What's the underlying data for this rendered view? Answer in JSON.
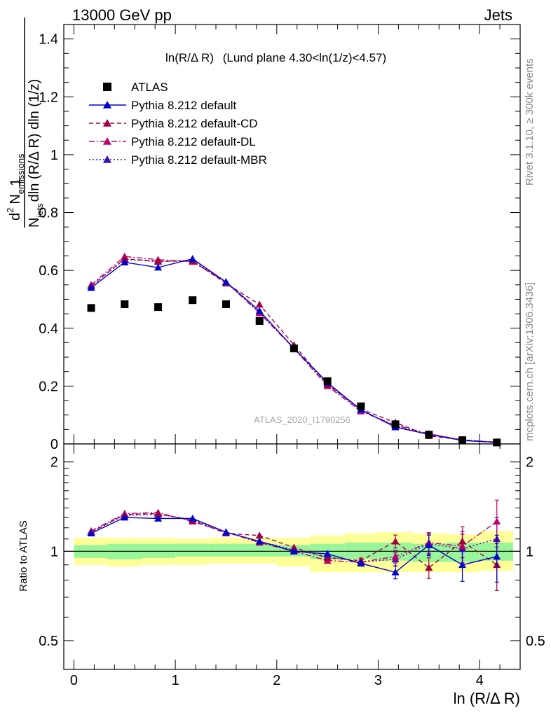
{
  "header": {
    "left": "13000 GeV pp",
    "right": "Jets"
  },
  "main_plot": {
    "title_prefix": "ln(R/Δ R)",
    "title_suffix": "(Lund plane 4.30<ln(1/z)<4.57)",
    "watermark": "ATLAS_2020_I1790256",
    "ylabel": {
      "one": "1",
      "njets": "N",
      "njets_sub": "jets",
      "dln_rest": "dln (R/Δ R) dln (1/z)",
      "d2": "d",
      "d2_sup": "2",
      "nemis": "N",
      "nemis_sub": "emissions"
    },
    "yticks": [
      "0",
      "0.2",
      "0.4",
      "0.6",
      "0.8",
      "1",
      "1.2",
      "1.4"
    ]
  },
  "ratio_plot": {
    "ylabel": "Ratio to ATLAS",
    "yticks": [
      "0.5",
      "1",
      "2"
    ]
  },
  "xaxis": {
    "label": "ln (R/Δ R)",
    "ticks": [
      "0",
      "1",
      "2",
      "3",
      "4"
    ]
  },
  "side_text": {
    "rivet": "Rivet 3.1.10, ≥ 300k events",
    "mcplots": "mcplots.cern.ch [arXiv:1306.3436]"
  },
  "legend": [
    {
      "label": "ATLAS",
      "color": "#000000",
      "marker": "square",
      "dash": "none"
    },
    {
      "label": "Pythia 8.212 default",
      "color": "#0000cc",
      "marker": "triangle",
      "dash": "solid"
    },
    {
      "label": "Pythia 8.212 default-CD",
      "color": "#a00040",
      "marker": "triangle",
      "dash": "dash"
    },
    {
      "label": "Pythia 8.212 default-DL",
      "color": "#c0006a",
      "marker": "triangle",
      "dash": "dashdot"
    },
    {
      "label": "Pythia 8.212 default-MBR",
      "color": "#3a10b0",
      "marker": "triangle",
      "dash": "dot"
    }
  ],
  "chart_data": {
    "type": "scatter",
    "x": [
      0.17,
      0.5,
      0.83,
      1.17,
      1.5,
      1.83,
      2.17,
      2.5,
      2.83,
      3.17,
      3.5,
      3.83,
      4.17
    ],
    "xlim": [
      -0.1,
      4.4
    ],
    "ylim": [
      0,
      1.45
    ],
    "ratio_ylim": [
      0.4,
      2.3
    ],
    "ratio_scale": "log",
    "series": [
      {
        "name": "ATLAS",
        "values": [
          0.47,
          0.483,
          0.473,
          0.497,
          0.483,
          0.425,
          0.33,
          0.217,
          0.13,
          0.068,
          0.032,
          0.013,
          0.005
        ]
      },
      {
        "name": "Pythia 8.212 default",
        "values": [
          0.54,
          0.628,
          0.61,
          0.64,
          0.56,
          0.46,
          0.33,
          0.212,
          0.118,
          0.058,
          0.033,
          0.012,
          0.005
        ]
      },
      {
        "name": "Pythia 8.212 default-CD",
        "values": [
          0.546,
          0.64,
          0.632,
          0.632,
          0.555,
          0.482,
          0.342,
          0.205,
          0.12,
          0.074,
          0.028,
          0.014,
          0.0045
        ]
      },
      {
        "name": "Pythia 8.212 default-DL",
        "values": [
          0.55,
          0.648,
          0.637,
          0.63,
          0.56,
          0.452,
          0.33,
          0.2,
          0.113,
          0.065,
          0.035,
          0.014,
          0.0063
        ]
      },
      {
        "name": "Pythia 8.212 default-MBR",
        "values": [
          0.545,
          0.638,
          0.63,
          0.635,
          0.558,
          0.455,
          0.332,
          0.207,
          0.116,
          0.062,
          0.034,
          0.013,
          0.0055
        ]
      }
    ],
    "ratio": [
      {
        "name": "Pythia 8.212 default",
        "values": [
          1.15,
          1.3,
          1.29,
          1.29,
          1.16,
          1.08,
          1.0,
          0.98,
          0.91,
          0.85,
          1.05,
          0.9,
          0.96
        ]
      },
      {
        "name": "Pythia 8.212 default-CD",
        "values": [
          1.16,
          1.33,
          1.34,
          1.27,
          1.15,
          1.13,
          1.03,
          0.95,
          0.93,
          1.08,
          0.88,
          1.08,
          0.9
        ]
      },
      {
        "name": "Pythia 8.212 default-DL",
        "values": [
          1.17,
          1.34,
          1.35,
          1.26,
          1.16,
          1.07,
          1.0,
          0.93,
          0.92,
          0.96,
          1.07,
          1.04,
          1.26
        ]
      },
      {
        "name": "Pythia 8.212 default-MBR",
        "values": [
          1.16,
          1.32,
          1.33,
          1.28,
          1.16,
          1.08,
          1.01,
          0.96,
          0.92,
          0.94,
          1.06,
          1.02,
          1.1
        ]
      }
    ],
    "ratio_errors": [
      0,
      0,
      0,
      0,
      0,
      0,
      0,
      0.02,
      0.02,
      0.05,
      0.08,
      0.12,
      0.18
    ],
    "bands": {
      "edges": [
        0.0,
        0.33,
        0.67,
        1.0,
        1.33,
        1.67,
        2.0,
        2.33,
        2.67,
        3.0,
        3.33,
        3.67,
        4.0,
        4.33
      ],
      "green": [
        [
          0.95,
          1.05
        ],
        [
          0.94,
          1.06
        ],
        [
          0.95,
          1.06
        ],
        [
          0.96,
          1.06
        ],
        [
          0.96,
          1.06
        ],
        [
          0.96,
          1.06
        ],
        [
          0.96,
          1.05
        ],
        [
          0.94,
          1.06
        ],
        [
          0.94,
          1.07
        ],
        [
          0.93,
          1.07
        ],
        [
          0.92,
          1.06
        ],
        [
          0.92,
          1.07
        ],
        [
          0.93,
          1.07
        ]
      ],
      "yellow": [
        [
          0.9,
          1.11
        ],
        [
          0.89,
          1.11
        ],
        [
          0.9,
          1.11
        ],
        [
          0.9,
          1.1
        ],
        [
          0.91,
          1.11
        ],
        [
          0.91,
          1.11
        ],
        [
          0.89,
          1.11
        ],
        [
          0.85,
          1.13
        ],
        [
          0.85,
          1.15
        ],
        [
          0.85,
          1.16
        ],
        [
          0.85,
          1.15
        ],
        [
          0.85,
          1.14
        ],
        [
          0.86,
          1.17
        ]
      ]
    }
  }
}
